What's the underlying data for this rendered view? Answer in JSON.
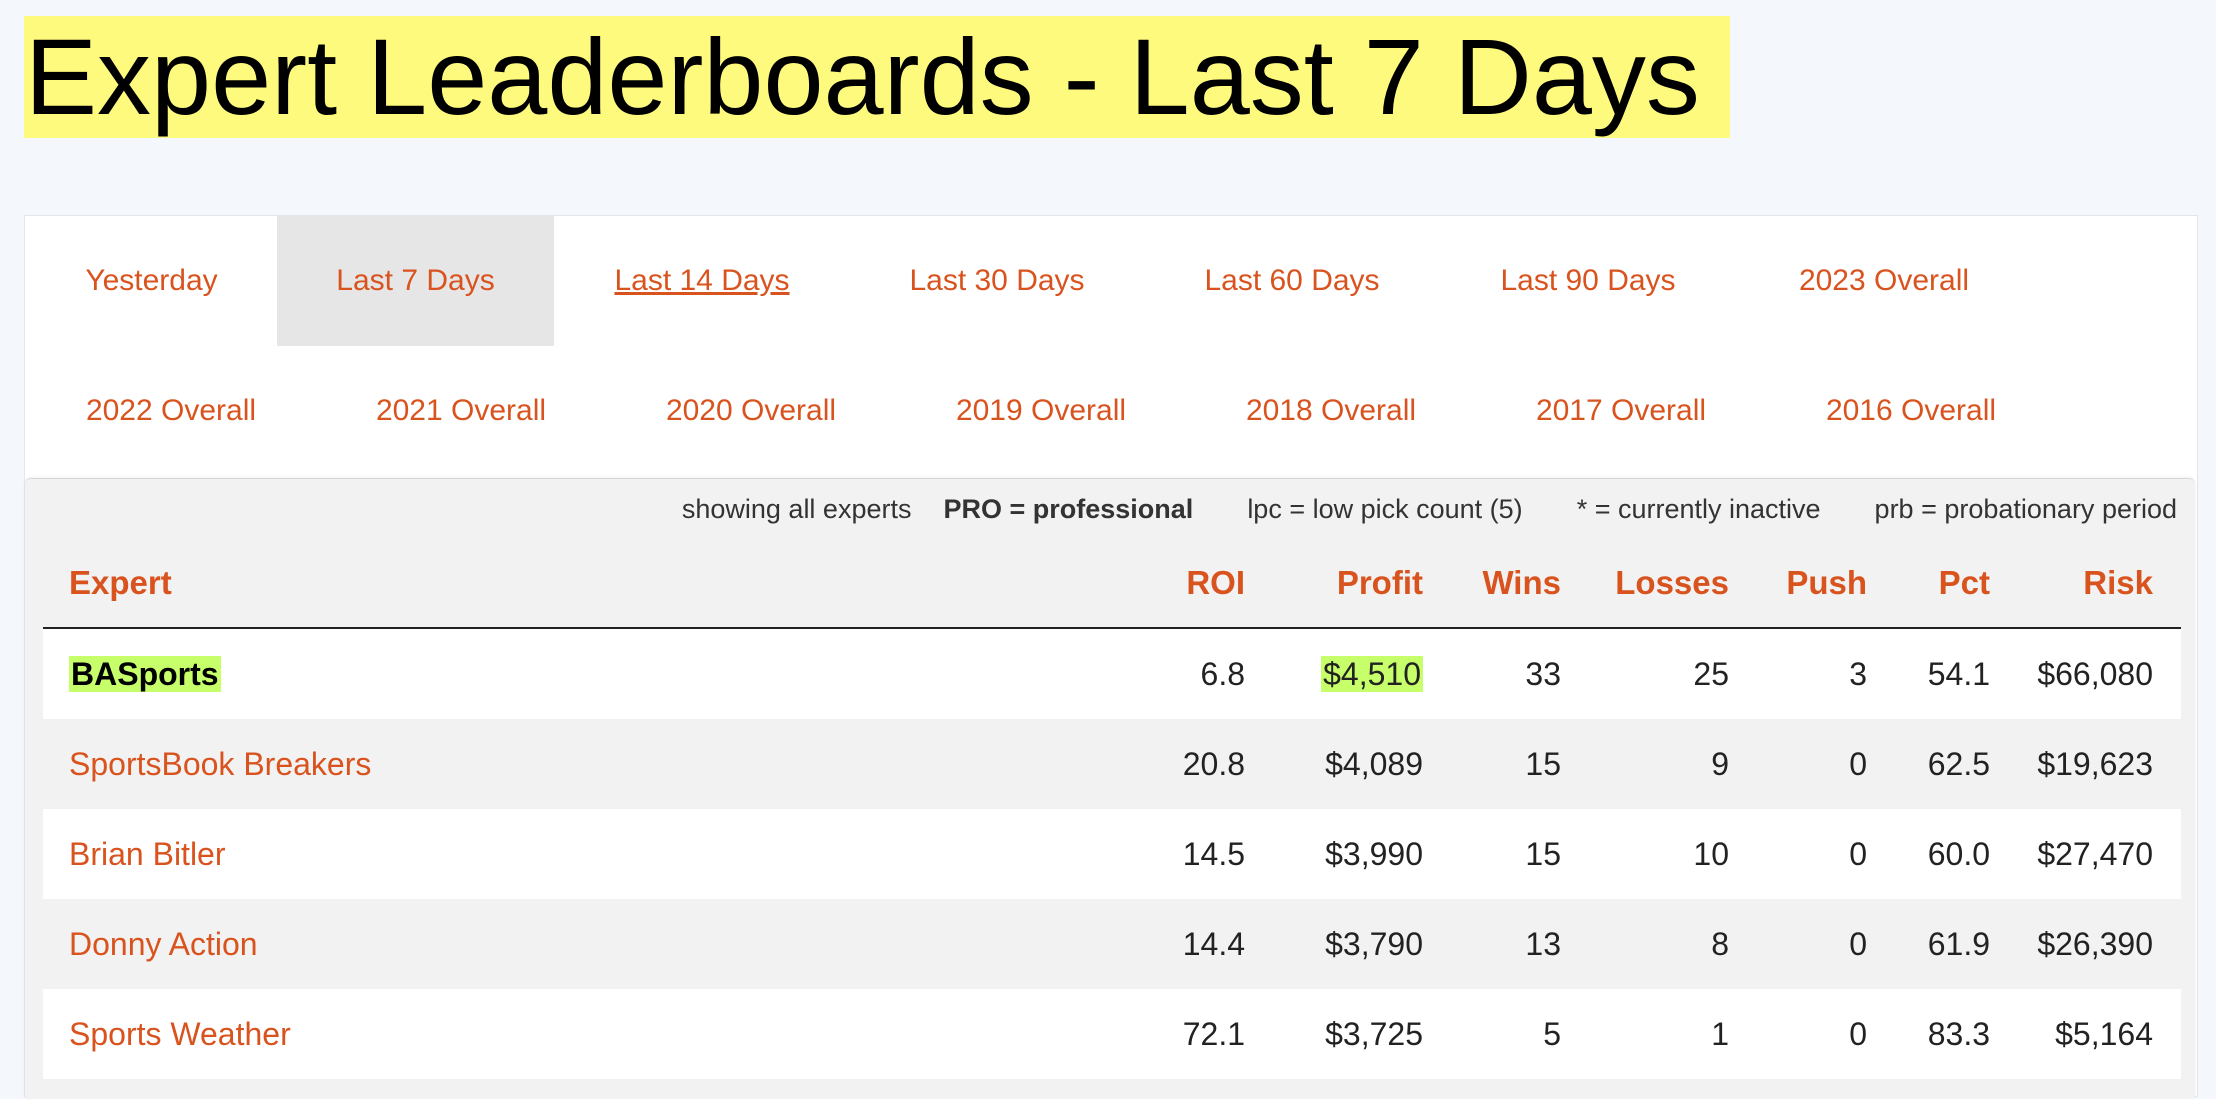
{
  "page": {
    "title": "Expert Leaderboards - Last 7 Days"
  },
  "tabs": {
    "row1": [
      {
        "label": "Yesterday",
        "state": "normal"
      },
      {
        "label": "Last 7 Days",
        "state": "active"
      },
      {
        "label": "Last 14 Days",
        "state": "hover"
      },
      {
        "label": "Last 30 Days",
        "state": "normal"
      },
      {
        "label": "Last 60 Days",
        "state": "normal"
      },
      {
        "label": "Last 90 Days",
        "state": "normal"
      },
      {
        "label": "2023 Overall",
        "state": "normal"
      }
    ],
    "row2": [
      {
        "label": "2022 Overall"
      },
      {
        "label": "2021 Overall"
      },
      {
        "label": "2020 Overall"
      },
      {
        "label": "2019 Overall"
      },
      {
        "label": "2018 Overall"
      },
      {
        "label": "2017 Overall"
      },
      {
        "label": "2016 Overall"
      }
    ]
  },
  "legend": {
    "showing": "showing all experts",
    "pro": "PRO = professional",
    "lpc": "lpc = low pick count (5)",
    "inactive": "* = currently inactive",
    "prb": "prb = probationary period"
  },
  "table": {
    "headers": {
      "expert": "Expert",
      "roi": "ROI",
      "profit": "Profit",
      "wins": "Wins",
      "losses": "Losses",
      "push": "Push",
      "pct": "Pct",
      "risk": "Risk"
    },
    "rows": [
      {
        "expert": "BASports",
        "roi": "6.8",
        "profit": "$4,510",
        "wins": "33",
        "losses": "25",
        "push": "3",
        "pct": "54.1",
        "risk": "$66,080"
      },
      {
        "expert": "SportsBook Breakers",
        "roi": "20.8",
        "profit": "$4,089",
        "wins": "15",
        "losses": "9",
        "push": "0",
        "pct": "62.5",
        "risk": "$19,623"
      },
      {
        "expert": "Brian Bitler",
        "roi": "14.5",
        "profit": "$3,990",
        "wins": "15",
        "losses": "10",
        "push": "0",
        "pct": "60.0",
        "risk": "$27,470"
      },
      {
        "expert": "Donny Action",
        "roi": "14.4",
        "profit": "$3,790",
        "wins": "13",
        "losses": "8",
        "push": "0",
        "pct": "61.9",
        "risk": "$26,390"
      },
      {
        "expert": "Sports Weather",
        "roi": "72.1",
        "profit": "$3,725",
        "wins": "5",
        "losses": "1",
        "push": "0",
        "pct": "83.3",
        "risk": "$5,164"
      }
    ]
  },
  "colors": {
    "accent": "#d9531e",
    "title_highlight": "#fefa7e",
    "row_highlight": "#c6ff69",
    "active_tab": "#e6e6e6"
  }
}
